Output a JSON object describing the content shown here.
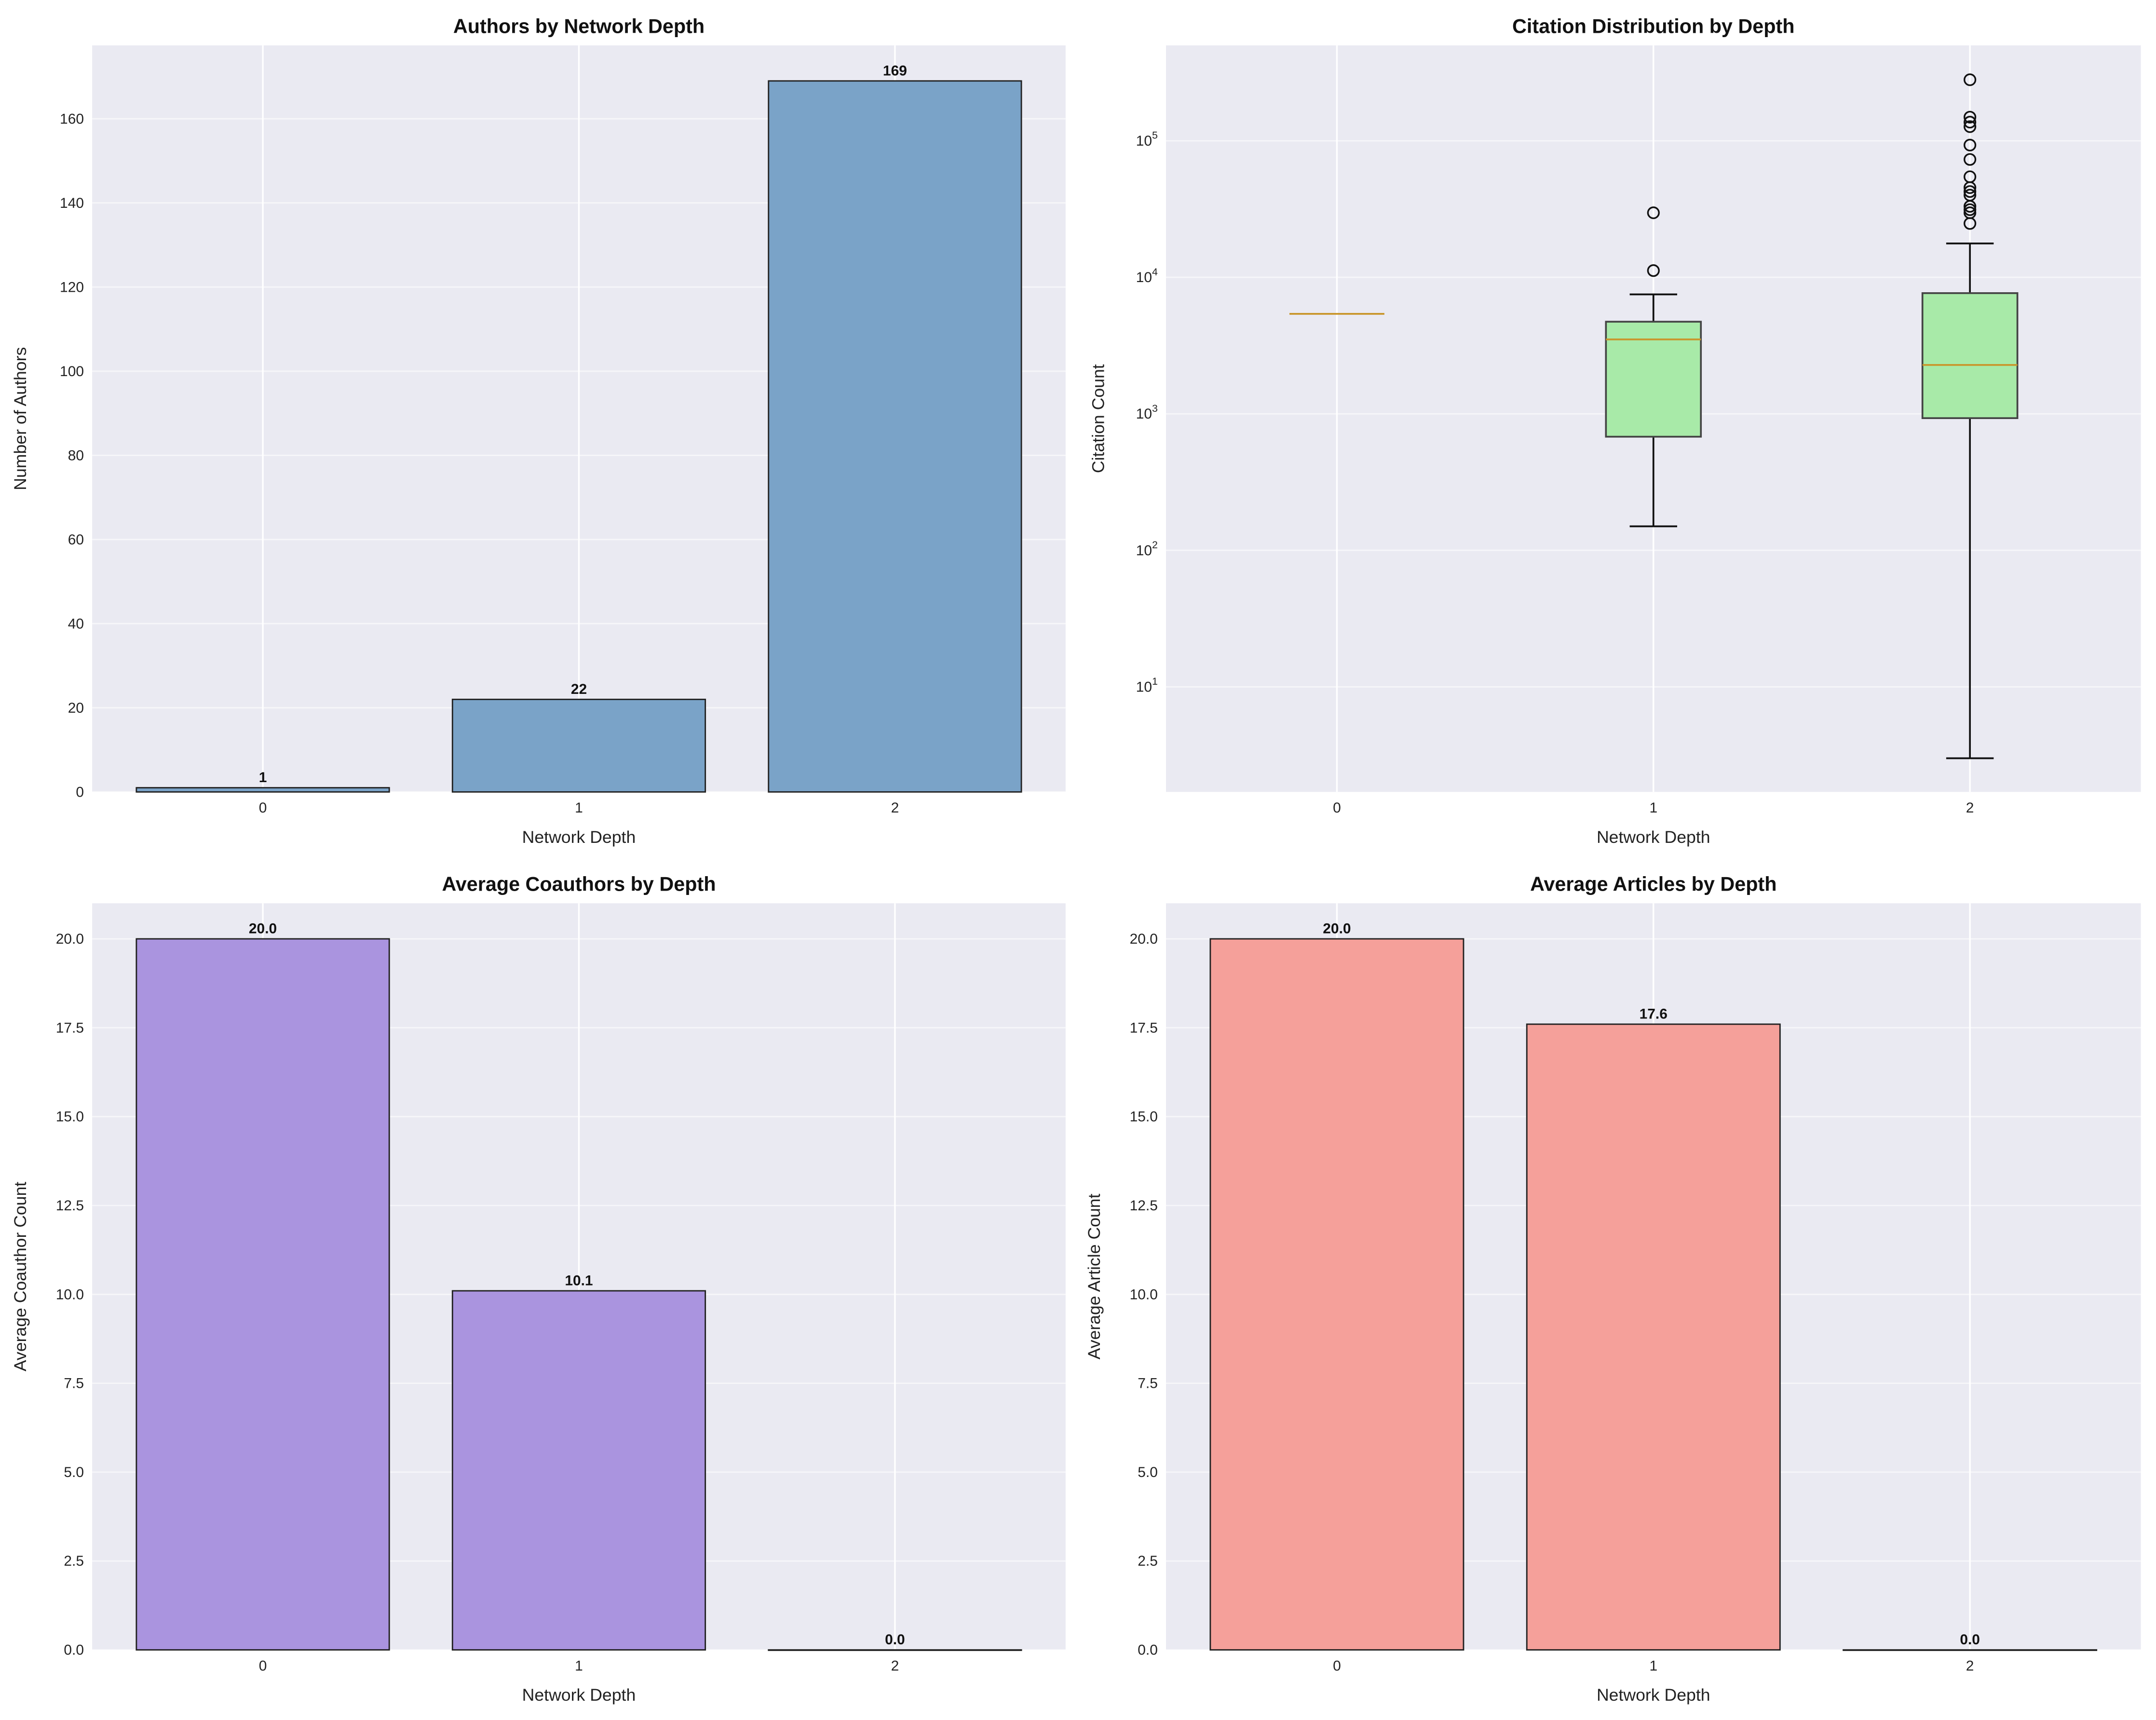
{
  "colors": {
    "background": "#eaeaf2",
    "grid": "#ffffff",
    "bar_edge": "#222222",
    "median": "#c9962c",
    "box_fill": "#a8eaa8",
    "box_edge": "#444444"
  },
  "chart_data": [
    {
      "type": "bar",
      "title": "Authors by Network Depth",
      "xlabel": "Network Depth",
      "ylabel": "Number of Authors",
      "categories": [
        "0",
        "1",
        "2"
      ],
      "values": [
        1,
        22,
        169
      ],
      "value_labels": [
        "1",
        "22",
        "169"
      ],
      "ylim": [
        0,
        177.45
      ],
      "yticks": [
        0,
        20,
        40,
        60,
        80,
        100,
        120,
        140,
        160
      ],
      "ytick_labels": [
        "0",
        "20",
        "40",
        "60",
        "80",
        "100",
        "120",
        "140",
        "160"
      ],
      "color": "#7aa3c8",
      "grid": true
    },
    {
      "type": "box",
      "title": "Citation Distribution by Depth",
      "xlabel": "Network Depth",
      "ylabel": "Citation Count",
      "yscale": "log",
      "categories": [
        "0",
        "1",
        "2"
      ],
      "boxes": [
        {
          "whislo": 5400,
          "q1": 5400,
          "med": 5400,
          "q3": 5400,
          "whishi": 5400,
          "fliers": []
        },
        {
          "whislo": 150,
          "q1": 680,
          "med": 3510,
          "q3": 4730,
          "whishi": 7500,
          "fliers": [
            11200,
            29700
          ]
        },
        {
          "whislo": 3,
          "q1": 930,
          "med": 2280,
          "q3": 7660,
          "whishi": 17700,
          "fliers": [
            24800,
            29700,
            31300,
            33100,
            40000,
            42500,
            45400,
            54500,
            73000,
            93000,
            127000,
            137000,
            149000,
            280000
          ]
        }
      ],
      "ylim": [
        1.7,
        500000
      ],
      "yticks": [
        10,
        100,
        1000,
        10000,
        100000
      ],
      "ytick_labels": [
        "10^1",
        "10^2",
        "10^3",
        "10^4",
        "10^5"
      ],
      "grid": true
    },
    {
      "type": "bar",
      "title": "Average Coauthors by Depth",
      "xlabel": "Network Depth",
      "ylabel": "Average Coauthor Count",
      "categories": [
        "0",
        "1",
        "2"
      ],
      "values": [
        20.0,
        10.1,
        0.0
      ],
      "value_labels": [
        "20.0",
        "10.1",
        "0.0"
      ],
      "ylim": [
        0,
        21
      ],
      "yticks": [
        0,
        2.5,
        5,
        7.5,
        10,
        12.5,
        15,
        17.5,
        20
      ],
      "ytick_labels": [
        "0.0",
        "2.5",
        "5.0",
        "7.5",
        "10.0",
        "12.5",
        "15.0",
        "17.5",
        "20.0"
      ],
      "color": "#aa94df",
      "grid": true
    },
    {
      "type": "bar",
      "title": "Average Articles by Depth",
      "xlabel": "Network Depth",
      "ylabel": "Average Article Count",
      "categories": [
        "0",
        "1",
        "2"
      ],
      "values": [
        20.0,
        17.6,
        0.0
      ],
      "value_labels": [
        "20.0",
        "17.6",
        "0.0"
      ],
      "ylim": [
        0,
        21
      ],
      "yticks": [
        0,
        2.5,
        5,
        7.5,
        10,
        12.5,
        15,
        17.5,
        20
      ],
      "ytick_labels": [
        "0.0",
        "2.5",
        "5.0",
        "7.5",
        "10.0",
        "12.5",
        "15.0",
        "17.5",
        "20.0"
      ],
      "color": "#f5a09a",
      "grid": true
    }
  ]
}
